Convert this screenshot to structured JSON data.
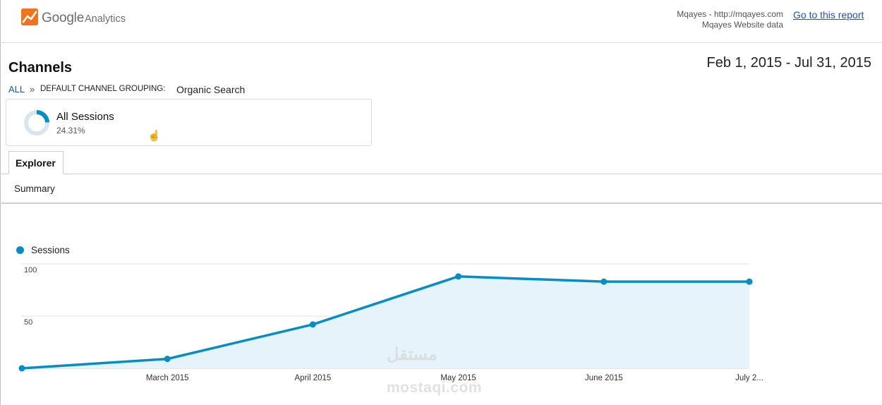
{
  "header": {
    "logo_google": "Google",
    "logo_analytics": "Analytics",
    "account_line1": "Mqayes - http://mqayes.com",
    "account_line2": "Mqayes Website data",
    "goto_link": "Go to this report",
    "logo_color": "#f0731f"
  },
  "report": {
    "title": "Channels",
    "date_range": "Feb 1, 2015 - Jul 31, 2015",
    "breadcrumb": {
      "all": "ALL",
      "separator": "»",
      "grouping": "DEFAULT CHANNEL GROUPING:",
      "value": "Organic Search"
    }
  },
  "segment": {
    "name": "All Sessions",
    "percent": "24.31%",
    "percent_value": 24.31
  },
  "tabs": {
    "explorer": "Explorer",
    "summary": "Summary"
  },
  "watermark": {
    "arabic": "مستقل",
    "latin": "mostaqi.com"
  },
  "chart_data": {
    "type": "area",
    "x": [
      "2015-02-01",
      "2015-03-01",
      "2015-04-01",
      "2015-05-01",
      "2015-06-01",
      "2015-07-01"
    ],
    "x_tick_labels": [
      "March 2015",
      "April 2015",
      "May 2015",
      "June 2015",
      "July 2..."
    ],
    "y_tick_labels": [
      "100",
      "50"
    ],
    "ylim": [
      0,
      100
    ],
    "series": [
      {
        "name": "Sessions",
        "values": [
          0,
          9,
          42,
          88,
          83,
          83
        ],
        "color": "#058dc7",
        "fill": "#e6f3fa"
      }
    ],
    "grid": true,
    "legend": "top-left"
  }
}
